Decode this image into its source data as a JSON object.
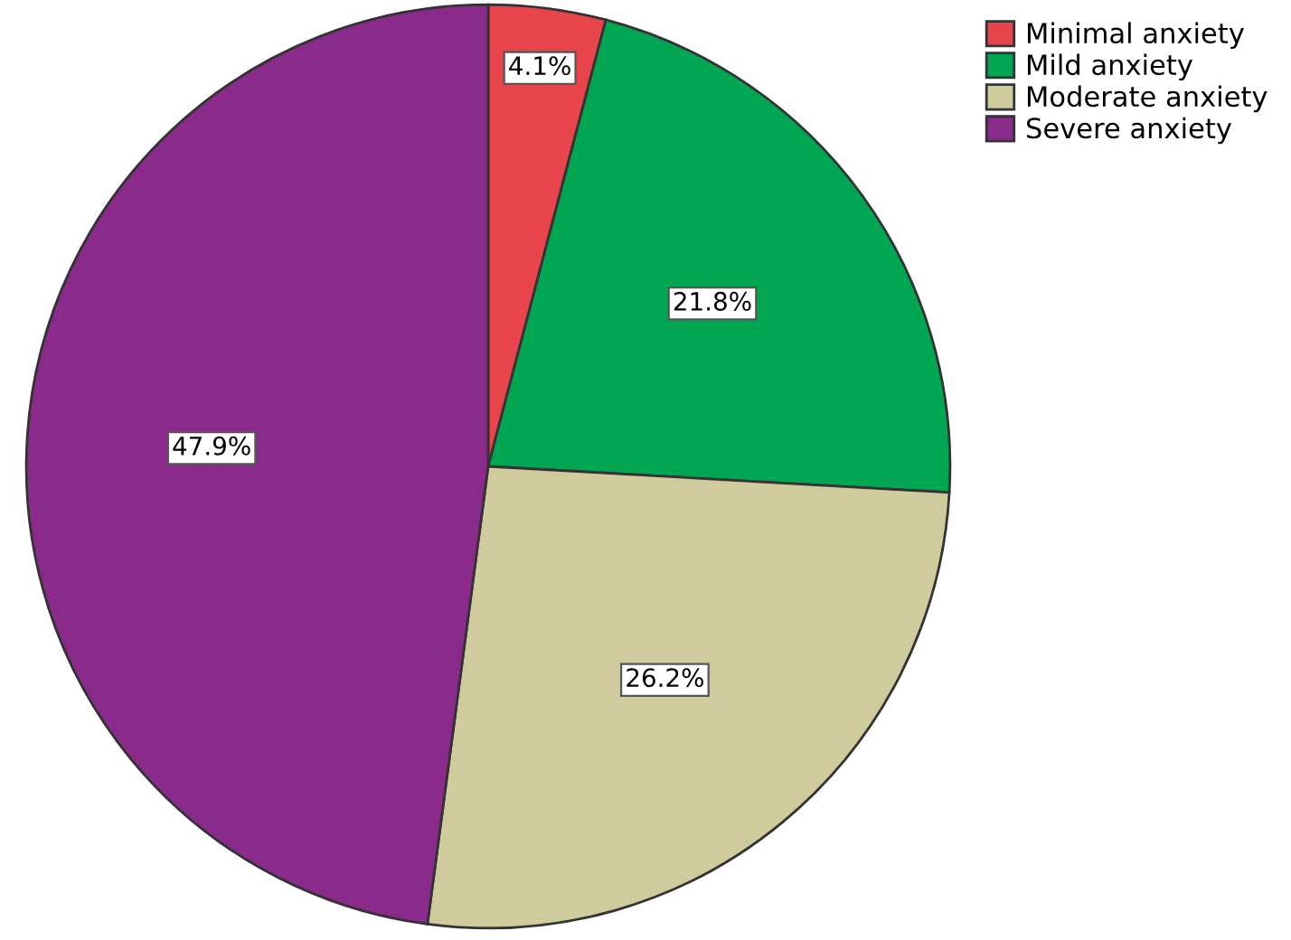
{
  "chart_data": {
    "type": "pie",
    "categories": [
      "Minimal anxiety",
      "Mild anxiety",
      "Moderate anxiety",
      "Severe anxiety"
    ],
    "values": [
      4.1,
      21.8,
      26.2,
      47.9
    ],
    "colors": [
      "#e8444c",
      "#00a651",
      "#cfcb9c",
      "#8a2a8a"
    ],
    "value_labels": [
      "4.1%",
      "21.8%",
      "26.2%",
      "47.9%"
    ],
    "legend": "top right"
  }
}
